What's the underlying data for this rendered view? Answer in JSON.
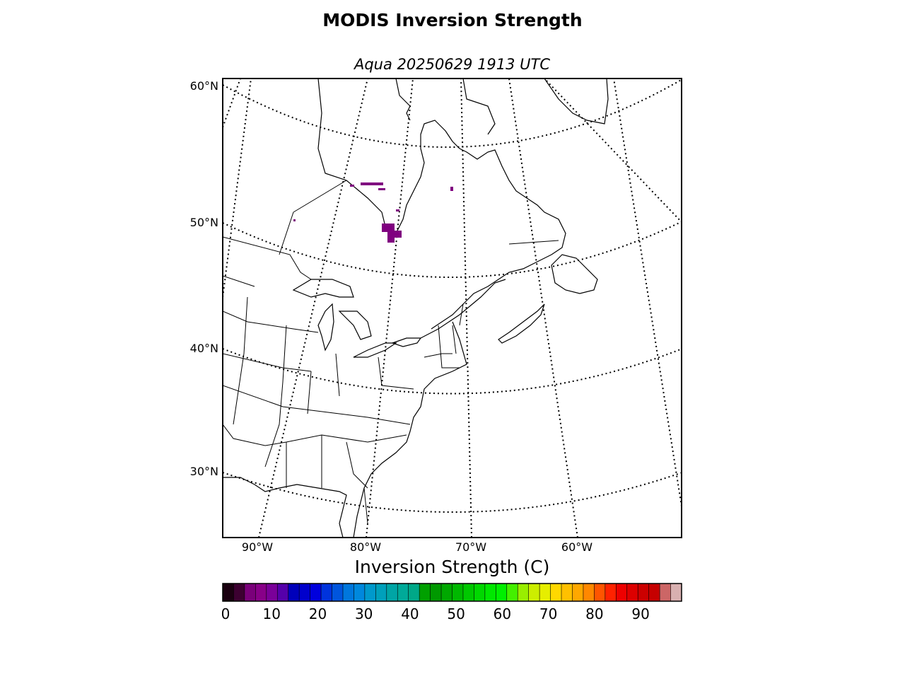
{
  "title": "MODIS Inversion Strength",
  "subtitle": "Aqua 20250629 1913 UTC",
  "lat_labels": [
    "60°N",
    "50°N",
    "40°N",
    "30°N"
  ],
  "lon_labels": [
    "90°W",
    "80°W",
    "70°W",
    "60°W"
  ],
  "colorbar": {
    "title": "Inversion Strength (C)",
    "ticks": [
      "0",
      "10",
      "20",
      "30",
      "40",
      "50",
      "60",
      "70",
      "80",
      "90"
    ],
    "colors": [
      "#1a0010",
      "#3c0030",
      "#7a007a",
      "#880088",
      "#7a0099",
      "#5500aa",
      "#0000bb",
      "#0000cc",
      "#0000dd",
      "#0033dd",
      "#0055dd",
      "#0077dd",
      "#0088dd",
      "#0099cc",
      "#00a0bb",
      "#00a5a5",
      "#00aa99",
      "#00a888",
      "#00a000",
      "#009900",
      "#00a800",
      "#00b800",
      "#00c800",
      "#00d800",
      "#00e800",
      "#00f000",
      "#44f000",
      "#99ee00",
      "#ccee00",
      "#e6ee00",
      "#ffd800",
      "#ffc000",
      "#ffa800",
      "#ff8800",
      "#ff5500",
      "#ff2200",
      "#ee0000",
      "#dd0000",
      "#cc0000",
      "#c60000",
      "#cc6666",
      "#d8b0b0"
    ]
  },
  "data_color": "#800080"
}
